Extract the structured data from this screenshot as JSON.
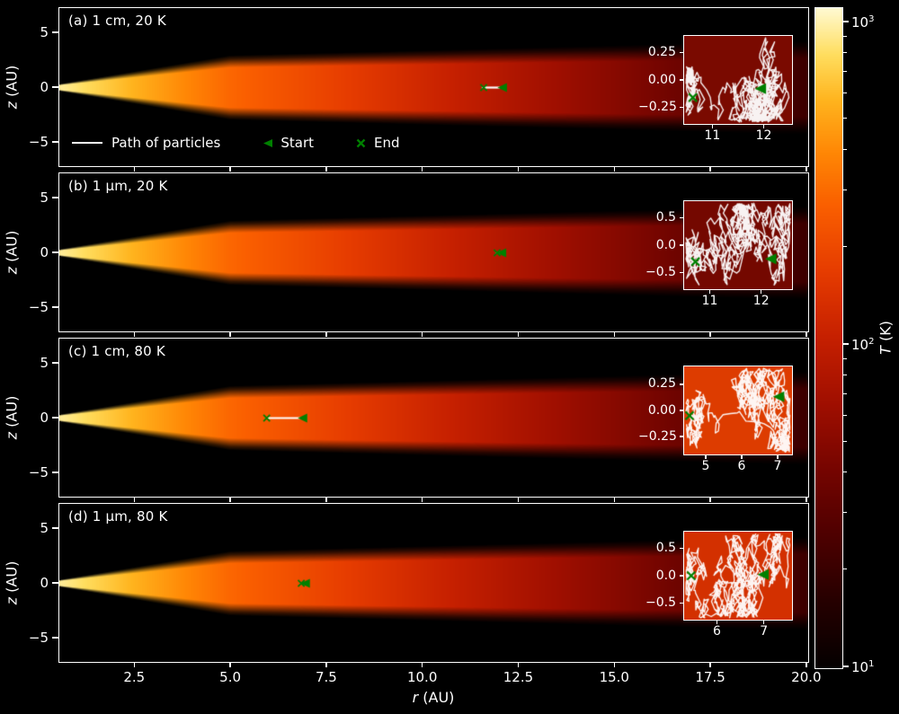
{
  "figure": {
    "background": "#000000",
    "axis_color": "#ffffff",
    "path_color": "#ffffff",
    "marker_color": "#008000"
  },
  "chart_data": {
    "type": "heatmap",
    "description": "Protoplanetary disk temperature maps (r-z plane) with particle path insets",
    "xlabel": {
      "variable": "r",
      "unit": " (AU)"
    },
    "ylabel": {
      "variable": "z",
      "unit": " (AU)"
    },
    "x_range": [
      0.55,
      20.05
    ],
    "x_ticks": [
      2.5,
      5.0,
      7.5,
      10.0,
      12.5,
      15.0,
      17.5,
      20.0
    ],
    "x_tick_labels": [
      "2.5",
      "5.0",
      "7.5",
      "10.0",
      "12.5",
      "15.0",
      "17.5",
      "20.0"
    ],
    "y_range": [
      -7.2,
      7.2
    ],
    "y_ticks": [
      5,
      0,
      -5
    ],
    "y_tick_labels": [
      "5",
      "0",
      "−5"
    ],
    "colormap": {
      "name": "hot",
      "stops": [
        [
          0,
          [
            5,
            0,
            0
          ]
        ],
        [
          0.1,
          [
            38,
            0,
            0
          ]
        ],
        [
          0.2,
          [
            78,
            0,
            0
          ]
        ],
        [
          0.3,
          [
            118,
            5,
            0
          ]
        ],
        [
          0.4,
          [
            160,
            15,
            0
          ]
        ],
        [
          0.5,
          [
            198,
            32,
            0
          ]
        ],
        [
          0.6,
          [
            230,
            60,
            0
          ]
        ],
        [
          0.7,
          [
            250,
            95,
            0
          ]
        ],
        [
          0.78,
          [
            255,
            135,
            5
          ]
        ],
        [
          0.86,
          [
            255,
            180,
            30
          ]
        ],
        [
          0.93,
          [
            255,
            222,
            95
          ]
        ],
        [
          1,
          [
            255,
            250,
            210
          ]
        ]
      ]
    },
    "colorbar": {
      "label": {
        "variable": "T",
        "unit": " (K)"
      },
      "scale": "log",
      "min": 10,
      "max": 1100,
      "tick_base": "10",
      "tick_exponents": [
        3,
        2,
        1
      ]
    },
    "legend": [
      {
        "symbol": "line",
        "label": "Path of particles"
      },
      {
        "symbol": "triangle-left",
        "label": "Start"
      },
      {
        "symbol": "x",
        "label": "End"
      }
    ],
    "panels": [
      {
        "label": "(a) 1 cm, 20 K",
        "grain_size": "1 cm",
        "temperature": "20 K",
        "path": {
          "z": 0,
          "r_from": 11.55,
          "r_to": 12.1,
          "start_r": 12.1,
          "end_r": 11.6
        },
        "inset": {
          "bg_color": "#7a0a00",
          "x_range": [
            10.45,
            12.55
          ],
          "x_ticks": [
            11,
            12
          ],
          "x_tick_labels": [
            "11",
            "12"
          ],
          "y_range": [
            -0.4,
            0.4
          ],
          "y_ticks": [
            0.25,
            0.0,
            -0.25
          ],
          "y_tick_labels": [
            "0.25",
            "0.00",
            "−0.25"
          ],
          "start": {
            "r": 11.95,
            "z": -0.08
          },
          "end": {
            "r": 10.62,
            "z": -0.16
          },
          "seed": 7
        }
      },
      {
        "label": "(b) 1 μm, 20 K",
        "grain_size": "1 μm",
        "temperature": "20 K",
        "path": {
          "z": 0,
          "r_from": 11.92,
          "r_to": 12.08,
          "start_r": 12.08,
          "end_r": 11.95
        },
        "inset": {
          "bg_color": "#740800",
          "x_range": [
            10.5,
            12.6
          ],
          "x_ticks": [
            11,
            12
          ],
          "x_tick_labels": [
            "11",
            "12"
          ],
          "y_range": [
            -0.8,
            0.8
          ],
          "y_ticks": [
            0.5,
            0.0,
            -0.5
          ],
          "y_tick_labels": [
            "0.5",
            "0.0",
            "−0.5"
          ],
          "start": {
            "r": 12.2,
            "z": -0.25
          },
          "end": {
            "r": 10.72,
            "z": -0.3
          },
          "seed": 13
        }
      },
      {
        "label": "(c) 1 cm, 80 K",
        "grain_size": "1 cm",
        "temperature": "80 K",
        "path": {
          "z": 0,
          "r_from": 5.95,
          "r_to": 6.9,
          "start_r": 6.9,
          "end_r": 5.95
        },
        "inset": {
          "bg_color": "#dd3c00",
          "x_range": [
            4.4,
            7.4
          ],
          "x_ticks": [
            5,
            6,
            7
          ],
          "x_tick_labels": [
            "5",
            "6",
            "7"
          ],
          "y_range": [
            -0.42,
            0.42
          ],
          "y_ticks": [
            0.25,
            0.0,
            -0.25
          ],
          "y_tick_labels": [
            "0.25",
            "0.00",
            "−0.25"
          ],
          "start": {
            "r": 7.05,
            "z": 0.13
          },
          "end": {
            "r": 4.55,
            "z": -0.05
          },
          "seed": 21
        }
      },
      {
        "label": "(d) 1 μm, 80 K",
        "grain_size": "1 μm",
        "temperature": "80 K",
        "path": {
          "z": 0,
          "r_from": 6.82,
          "r_to": 6.97,
          "start_r": 6.97,
          "end_r": 6.85
        },
        "inset": {
          "bg_color": "#d33000",
          "x_range": [
            5.3,
            7.6
          ],
          "x_ticks": [
            6,
            7
          ],
          "x_tick_labels": [
            "6",
            "7"
          ],
          "y_range": [
            -0.8,
            0.8
          ],
          "y_ticks": [
            0.5,
            0.0,
            -0.5
          ],
          "y_tick_labels": [
            "0.5",
            "0.0",
            "−0.5"
          ],
          "start": {
            "r": 7.0,
            "z": 0.02
          },
          "end": {
            "r": 5.45,
            "z": 0.0
          },
          "seed": 35
        }
      }
    ]
  }
}
